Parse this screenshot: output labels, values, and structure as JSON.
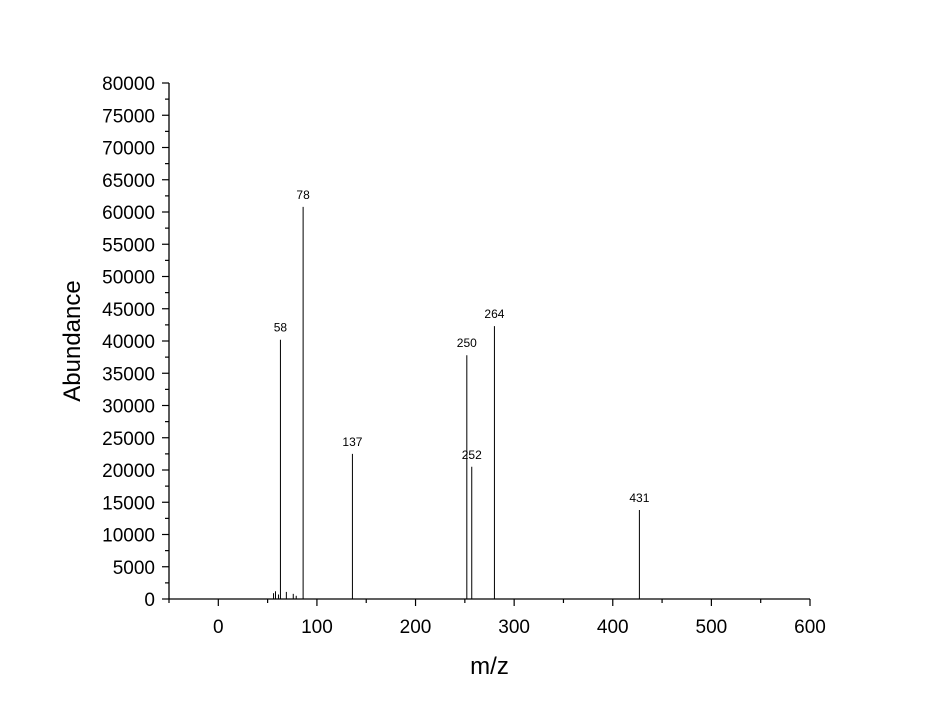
{
  "chart_data": {
    "type": "bar",
    "title": "",
    "xlabel": "m/z",
    "ylabel": "Abundance",
    "xlim": [
      -50,
      600
    ],
    "ylim": [
      0,
      80000
    ],
    "x_ticks": [
      0,
      100,
      200,
      300,
      400,
      500,
      600
    ],
    "y_ticks": [
      0,
      5000,
      10000,
      15000,
      20000,
      25000,
      30000,
      35000,
      40000,
      45000,
      50000,
      55000,
      60000,
      65000,
      70000,
      75000,
      80000
    ],
    "grid": false,
    "legend": "none",
    "peaks": [
      {
        "x": 63,
        "y": 40200,
        "label": "58"
      },
      {
        "x": 86,
        "y": 60800,
        "label": "78"
      },
      {
        "x": 136,
        "y": 22500,
        "label": "137"
      },
      {
        "x": 252,
        "y": 37800,
        "label": "250"
      },
      {
        "x": 257,
        "y": 20500,
        "label": "252"
      },
      {
        "x": 280,
        "y": 42300,
        "label": "264"
      },
      {
        "x": 427,
        "y": 13800,
        "label": "431"
      }
    ],
    "minor_peaks": [
      {
        "x": 56,
        "y": 900
      },
      {
        "x": 58,
        "y": 1200
      },
      {
        "x": 61,
        "y": 700
      },
      {
        "x": 69,
        "y": 1100
      },
      {
        "x": 76,
        "y": 800
      },
      {
        "x": 79,
        "y": 500
      }
    ]
  }
}
